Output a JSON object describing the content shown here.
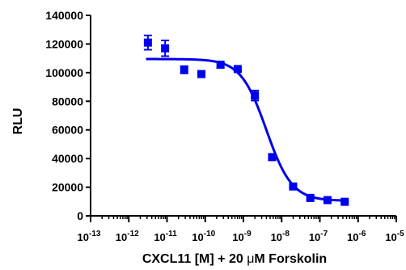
{
  "chart_data": {
    "type": "scatter",
    "title": "",
    "xlabel_main": "CXCL11 [M] + 20 ",
    "xlabel_mu": "μ",
    "xlabel_rest": "M Forskolin",
    "ylabel": "RLU",
    "x_scale": "log10",
    "xlim": [
      -13,
      -5
    ],
    "ylim": [
      0,
      140000
    ],
    "y_ticks": [
      0,
      20000,
      40000,
      60000,
      80000,
      100000,
      120000,
      140000
    ],
    "y_tick_labels": [
      "0",
      "20000",
      "40000",
      "60000",
      "80000",
      "100000",
      "120000",
      "140000"
    ],
    "x_ticks": [
      -13,
      -12,
      -11,
      -10,
      -9,
      -8,
      -7,
      -6,
      -5
    ],
    "x_tick_base": "10",
    "x_tick_exponents": [
      "-13",
      "-12",
      "-11",
      "-10",
      "-9",
      "-8",
      "-7",
      "-6",
      "-5"
    ],
    "grid": false,
    "legend": "none",
    "series": [
      {
        "color": "#0000ee",
        "points": [
          {
            "x": -11.5,
            "y": 121000,
            "err": 5000
          },
          {
            "x": -11.05,
            "y": 117000,
            "err": 5500
          },
          {
            "x": -10.55,
            "y": 102000,
            "err": 2500
          },
          {
            "x": -10.1,
            "y": 99000,
            "err": 1000
          },
          {
            "x": -9.6,
            "y": 105500,
            "err": 2000
          },
          {
            "x": -9.15,
            "y": 102500,
            "err": 1500
          },
          {
            "x": -8.7,
            "y": 84000,
            "err": 3500
          },
          {
            "x": -8.25,
            "y": 41000,
            "err": 1500
          },
          {
            "x": -7.7,
            "y": 20500,
            "err": 1000
          },
          {
            "x": -7.25,
            "y": 12500,
            "err": 1000
          },
          {
            "x": -6.8,
            "y": 11000,
            "err": 500
          },
          {
            "x": -6.35,
            "y": 9800,
            "err": 500
          }
        ]
      }
    ],
    "fit_curve": {
      "color": "#0000ee",
      "model": "four-parameter logistic",
      "top": 109500,
      "bottom": 10500,
      "log_ic50": -8.4,
      "hill_slope": -1.3,
      "x_range": [
        -11.55,
        -6.35
      ]
    }
  }
}
